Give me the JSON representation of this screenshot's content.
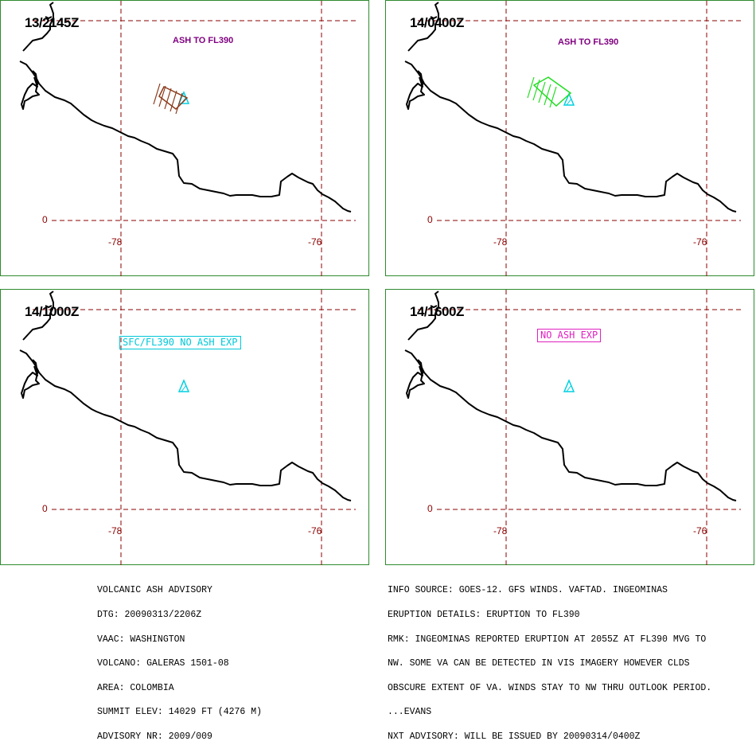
{
  "colors": {
    "frame": "#2e8b2e",
    "grid": "#8b0000",
    "coast": "#000000",
    "volcano": "#00d0e0",
    "ash_advisory_text": "#800080",
    "ash_initial": "#8b3a1a",
    "ash_forecast": "#22dd22",
    "no_ash_cyan": "#00c8d8",
    "no_ash_magenta": "#e020c0"
  },
  "grid_labels": {
    "lat_0": "0",
    "lon_78": "-78",
    "lon_76": "-76"
  },
  "panels": [
    {
      "time": "13/2145Z",
      "ash_text": "ASH TO FL390",
      "ash_style": "initial"
    },
    {
      "time": "14/0400Z",
      "ash_text": "ASH TO FL390",
      "ash_style": "forecast"
    },
    {
      "time": "14/1000Z",
      "ash_text": "SFC/FL390 NO ASH EXP",
      "ash_style": "none_cyan"
    },
    {
      "time": "14/1600Z",
      "ash_text": "NO ASH EXP",
      "ash_style": "none_magenta"
    }
  ],
  "advisory_left": [
    "VOLCANIC ASH ADVISORY",
    "DTG: 20090313/2206Z",
    "VAAC: WASHINGTON",
    "VOLCANO: GALERAS 1501-08",
    "AREA: COLOMBIA",
    "SUMMIT ELEV: 14029 FT (4276 M)",
    "ADVISORY NR: 2009/009"
  ],
  "advisory_right": [
    "INFO SOURCE: GOES-12. GFS WINDS. VAFTAD. INGEOMINAS",
    "ERUPTION DETAILS: ERUPTION TO FL390",
    "RMK: INGEOMINAS REPORTED ERUPTION AT 2055Z AT FL390 MVG TO",
    "NW. SOME VA CAN BE DETECTED IN VIS IMAGERY HOWEVER CLDS",
    "OBSCURE EXTENT OF VA. WINDS STAY TO NW THRU OUTLOOK PERIOD.",
    "...EVANS",
    "NXT ADVISORY: WILL BE ISSUED BY 20090314/0400Z"
  ]
}
